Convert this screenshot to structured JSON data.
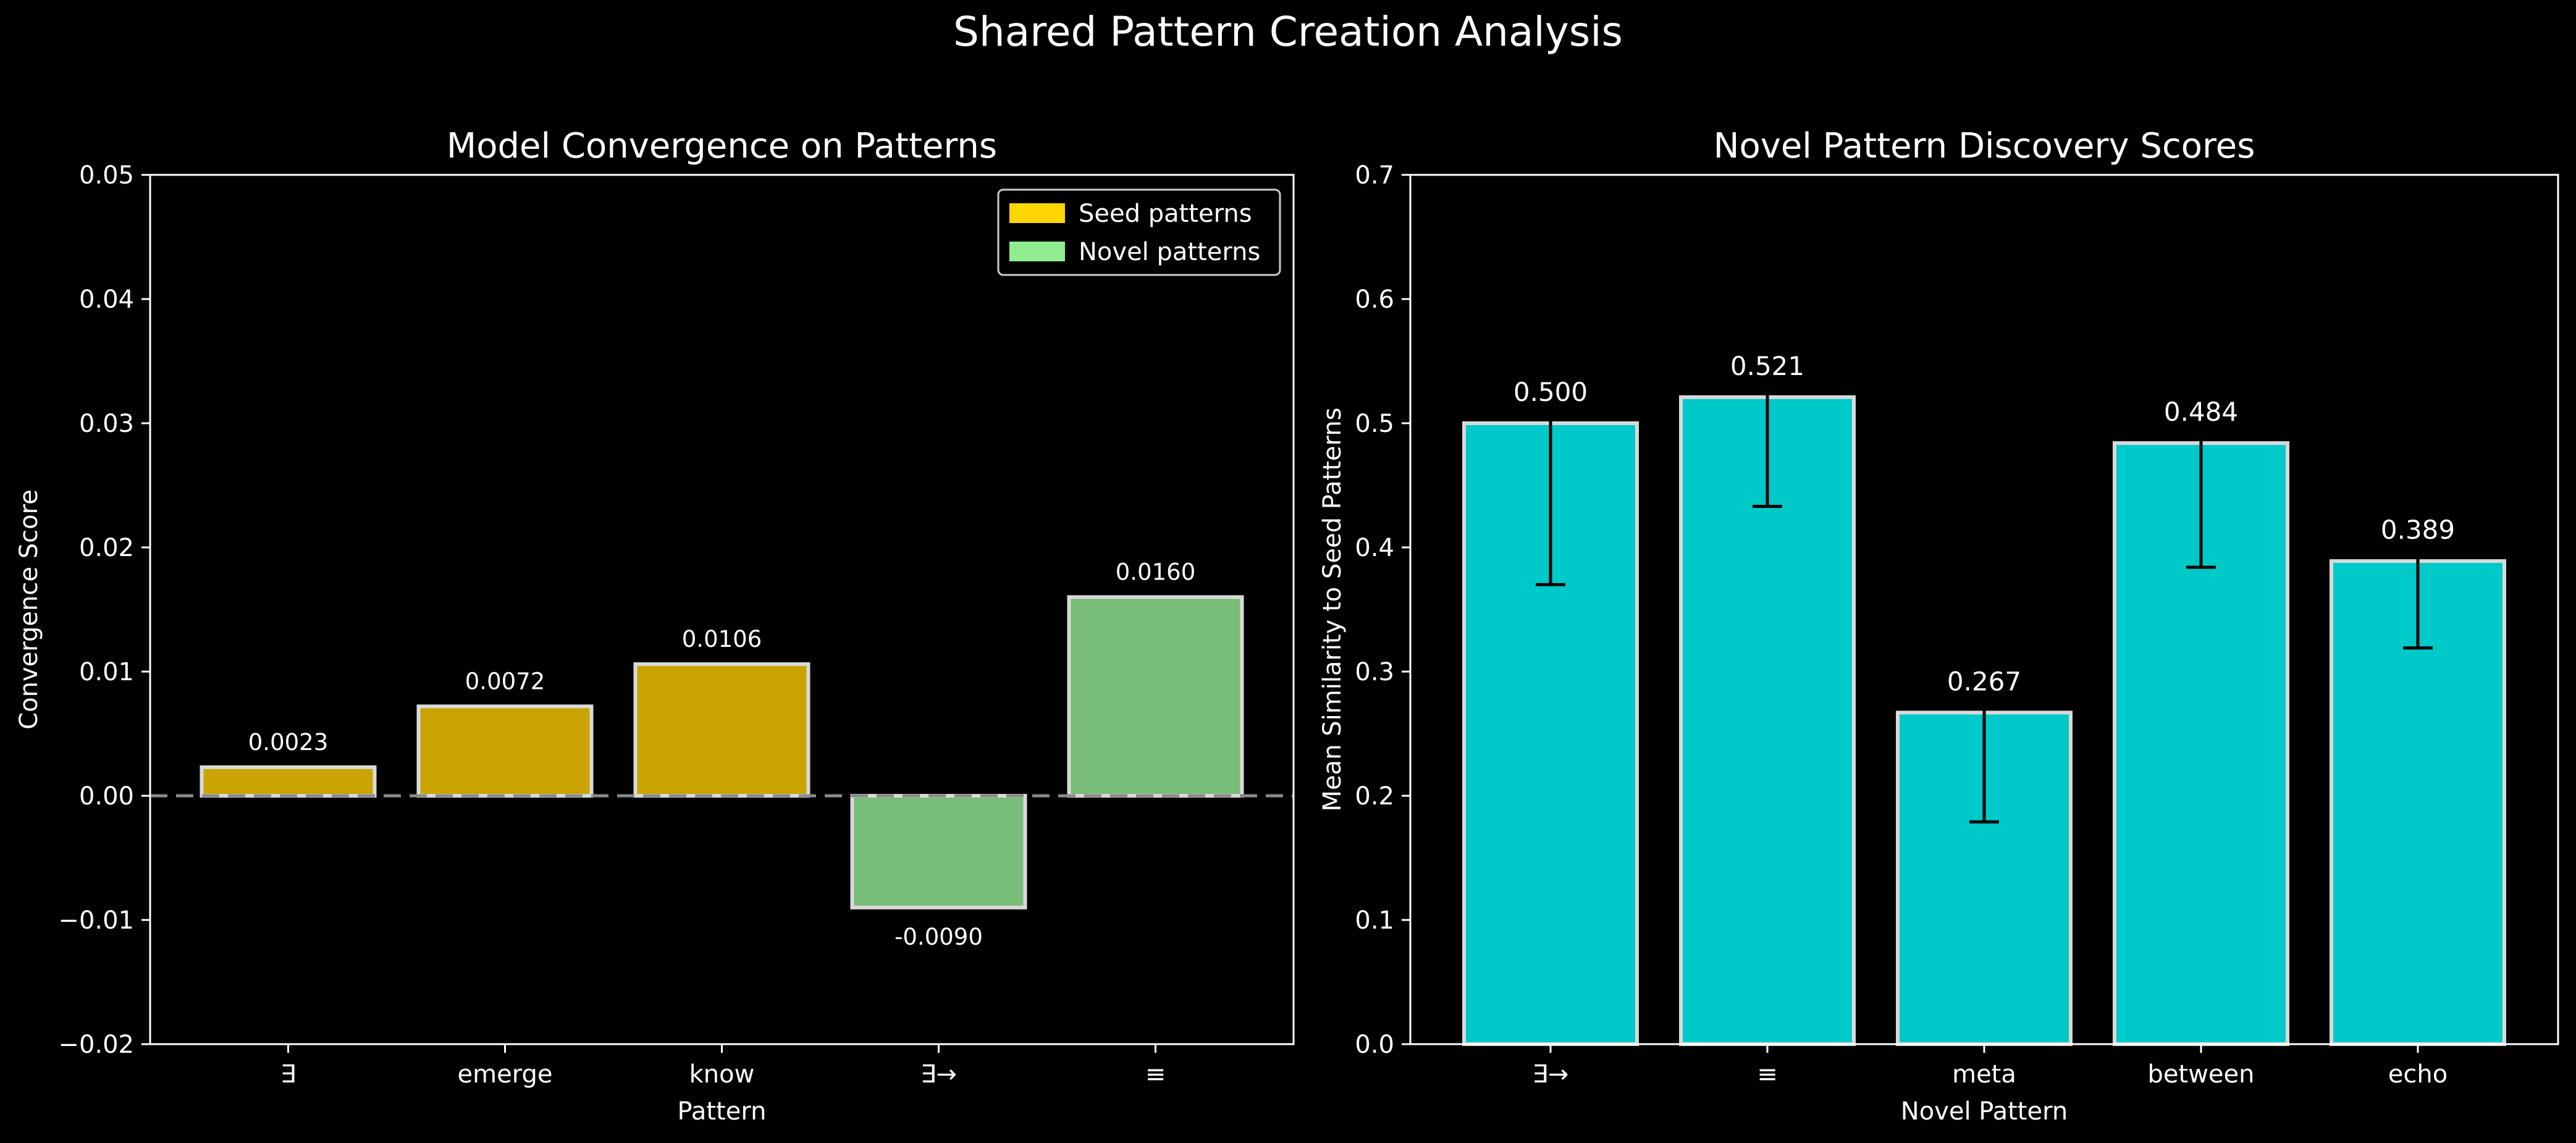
{
  "figure_title": "Shared Pattern Creation Analysis",
  "colors": {
    "background": "#000000",
    "text": "#ffffff",
    "seed": "#c9a400",
    "novel": "#77bd77",
    "cyan": "#00c9c9",
    "bar_edge": "#d9d9d9",
    "legend_seed": "#ffd700",
    "legend_novel": "#90ee90",
    "error_bar": "#000000"
  },
  "chart_data": [
    {
      "type": "bar",
      "title": "Model Convergence on Patterns",
      "xlabel": "Pattern",
      "ylabel": "Convergence Score",
      "categories": [
        "∃",
        "emerge",
        "know",
        "∃→",
        "≡"
      ],
      "values": [
        0.0023,
        0.0072,
        0.0106,
        -0.009,
        0.016
      ],
      "value_labels": [
        "0.0023",
        "0.0072",
        "0.0106",
        "-0.0090",
        "0.0160"
      ],
      "groups": [
        "seed",
        "seed",
        "seed",
        "novel",
        "novel"
      ],
      "ylim": [
        -0.02,
        0.05
      ],
      "yticks": [
        -0.02,
        -0.01,
        0.0,
        0.01,
        0.02,
        0.03,
        0.04,
        0.05
      ],
      "ytick_labels": [
        "−0.02",
        "−0.01",
        "0.00",
        "0.01",
        "0.02",
        "0.03",
        "0.04",
        "0.05"
      ],
      "zero_line": "dashed",
      "grid": false,
      "legend": {
        "placement": "top-right",
        "entries": [
          {
            "label": "Seed patterns",
            "group": "seed"
          },
          {
            "label": "Novel patterns",
            "group": "novel"
          }
        ]
      }
    },
    {
      "type": "bar",
      "title": "Novel Pattern Discovery Scores",
      "xlabel": "Novel Pattern",
      "ylabel": "Mean Similarity to Seed Patterns",
      "categories": [
        "∃→",
        "≡",
        "meta",
        "between",
        "echo"
      ],
      "values": [
        0.5,
        0.521,
        0.267,
        0.484,
        0.389
      ],
      "value_labels": [
        "0.500",
        "0.521",
        "0.267",
        "0.484",
        "0.389"
      ],
      "errors": [
        0.13,
        0.088,
        0.088,
        0.1,
        0.07
      ],
      "ylim": [
        0.0,
        0.7
      ],
      "yticks": [
        0.0,
        0.1,
        0.2,
        0.3,
        0.4,
        0.5,
        0.6,
        0.7
      ],
      "ytick_labels": [
        "0.0",
        "0.1",
        "0.2",
        "0.3",
        "0.4",
        "0.5",
        "0.6",
        "0.7"
      ],
      "grid": false
    }
  ]
}
